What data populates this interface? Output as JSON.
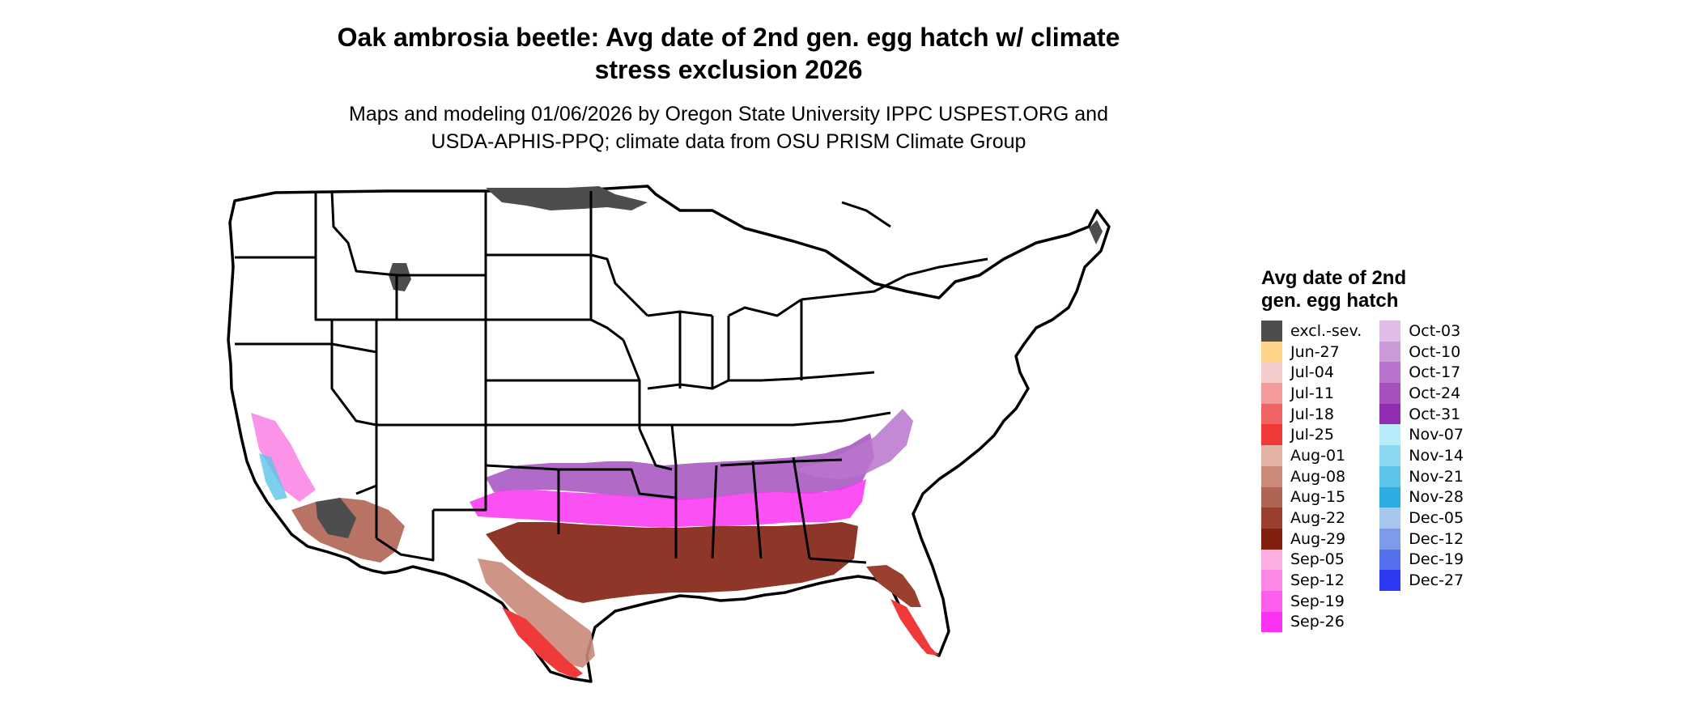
{
  "title": {
    "line1": "Oak ambrosia beetle: Avg date of 2nd gen. egg hatch w/ climate",
    "line2": "stress exclusion 2026"
  },
  "subtitle": {
    "line1": "Maps and modeling 01/06/2026 by Oregon State University IPPC USPEST.ORG and",
    "line2": "USDA-APHIS-PPQ; climate data from OSU PRISM Climate Group"
  },
  "legend": {
    "title_line1": "Avg date of 2nd",
    "title_line2": "gen. egg hatch",
    "col1": [
      {
        "label": "excl.-sev.",
        "color": "#4d4d4d"
      },
      {
        "label": "Jun-27",
        "color": "#fdd48a"
      },
      {
        "label": "Jul-04",
        "color": "#f5cccc"
      },
      {
        "label": "Jul-11",
        "color": "#f39a9a"
      },
      {
        "label": "Jul-18",
        "color": "#f26464"
      },
      {
        "label": "Jul-25",
        "color": "#f03a3a"
      },
      {
        "label": "Aug-01",
        "color": "#e3b3a6"
      },
      {
        "label": "Aug-08",
        "color": "#c98a7a"
      },
      {
        "label": "Aug-15",
        "color": "#b06453"
      },
      {
        "label": "Aug-22",
        "color": "#99402e"
      },
      {
        "label": "Aug-29",
        "color": "#82200f"
      },
      {
        "label": "Sep-05",
        "color": "#fcaee0"
      },
      {
        "label": "Sep-12",
        "color": "#fb88e6"
      },
      {
        "label": "Sep-19",
        "color": "#fb5eed"
      },
      {
        "label": "Sep-26",
        "color": "#fa33f2"
      }
    ],
    "col2": [
      {
        "label": "Oct-03",
        "color": "#e0bde6"
      },
      {
        "label": "Oct-10",
        "color": "#cc99d9"
      },
      {
        "label": "Oct-17",
        "color": "#b874cc"
      },
      {
        "label": "Oct-24",
        "color": "#a550bf"
      },
      {
        "label": "Oct-31",
        "color": "#902db3"
      },
      {
        "label": "Nov-07",
        "color": "#b8ecfa"
      },
      {
        "label": "Nov-14",
        "color": "#8ad8f2"
      },
      {
        "label": "Nov-21",
        "color": "#5cc3ea"
      },
      {
        "label": "Nov-28",
        "color": "#2eabe0"
      },
      {
        "label": "Dec-05",
        "color": "#a6c6ee"
      },
      {
        "label": "Dec-12",
        "color": "#7d9bea"
      },
      {
        "label": "Dec-19",
        "color": "#5570ec"
      },
      {
        "label": "Dec-27",
        "color": "#2d3af2"
      }
    ]
  }
}
